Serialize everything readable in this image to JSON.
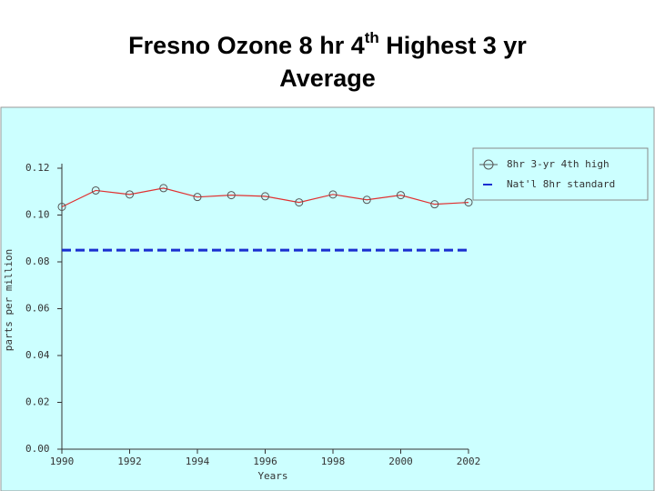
{
  "chart_data": {
    "type": "line",
    "title": [
      "Fresno Ozone 8 hr 4",
      "th",
      " Highest 3 yr",
      "Average"
    ],
    "x_label": "Years",
    "y_label": "parts per million",
    "x": [
      1990,
      1991,
      1992,
      1993,
      1994,
      1995,
      1996,
      1997,
      1998,
      1999,
      2000,
      2001,
      2002
    ],
    "xlim": [
      1990,
      2002
    ],
    "xticks": [
      1990,
      1992,
      1994,
      1996,
      1998,
      2000,
      2002
    ],
    "ylim": [
      0,
      0.12
    ],
    "yticks": [
      {
        "value": 0,
        "label": "0.00"
      },
      0.02,
      0.04,
      0.06,
      0.08,
      {
        "value": 0.1,
        "label": "0.10"
      },
      0.12
    ],
    "legend": "top-right",
    "series": [
      {
        "name": "8hr 3-yr 4th high",
        "color": "#e03030",
        "marker": "circle",
        "values": [
          0.1035,
          0.1105,
          0.1088,
          0.1115,
          0.1077,
          0.1085,
          0.108,
          0.1054,
          0.1088,
          0.1065,
          0.1085,
          0.1046,
          0.1054
        ]
      },
      {
        "name": "Nat'l 8hr standard",
        "color": "#1a2fd0",
        "dashed": true,
        "values": [
          0.085,
          0.085,
          0.085,
          0.085,
          0.085,
          0.085,
          0.085,
          0.085,
          0.085,
          0.085,
          0.085,
          0.085,
          0.085
        ]
      }
    ]
  }
}
